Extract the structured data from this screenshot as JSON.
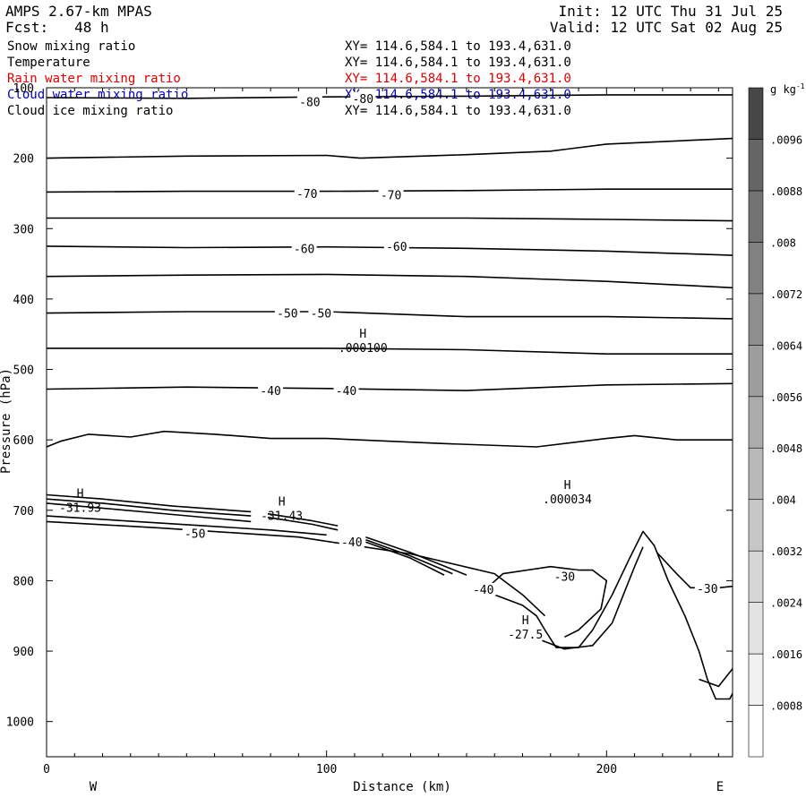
{
  "header": {
    "model": "AMPS 2.67-km MPAS",
    "forecast": "Fcst:   48 h",
    "init": "Init: 12 UTC Thu 31 Jul 25",
    "valid": "Valid: 12 UTC Sat 02 Aug 25"
  },
  "legend": [
    {
      "name": "Snow mixing ratio",
      "xy": "XY= 114.6,584.1 to 193.4,631.0",
      "color": "#000000"
    },
    {
      "name": "Temperature",
      "xy": "XY= 114.6,584.1 to 193.4,631.0",
      "color": "#000000"
    },
    {
      "name": "Rain water mixing ratio",
      "xy": "XY= 114.6,584.1 to 193.4,631.0",
      "color": "#e00000"
    },
    {
      "name": "Cloud water mixing ratio",
      "xy": "XY= 114.6,584.1 to 193.4,631.0",
      "color": "#0000c0"
    },
    {
      "name": "Cloud ice mixing ratio",
      "xy": "XY= 114.6,584.1 to 193.4,631.0",
      "color": "#000000"
    }
  ],
  "chart_data": {
    "type": "line",
    "xlabel": "Distance (km)",
    "ylabel": "Pressure (hPa)",
    "xlim": [
      0,
      245
    ],
    "ylim": [
      100,
      1050
    ],
    "x_ticks": [
      0,
      100,
      200
    ],
    "y_ticks": [
      100,
      200,
      300,
      400,
      500,
      600,
      700,
      800,
      900,
      1000
    ],
    "x_end_labels": {
      "left": "W",
      "right": "E"
    },
    "colorbar": {
      "unit": "g kg",
      "unit_exp": "-1",
      "tick_labels": [
        ".0008",
        ".0016",
        ".0024",
        ".0032",
        ".004",
        ".0048",
        ".0056",
        ".0064",
        ".0072",
        ".008",
        ".0088",
        ".0096"
      ],
      "shade_colors": [
        "#ffffff",
        "#f1f1f1",
        "#e3e3e3",
        "#d5d5d5",
        "#c7c7c7",
        "#b9b9b9",
        "#ababab",
        "#9d9d9d",
        "#8f8f8f",
        "#818181",
        "#737373",
        "#656565",
        "#474747"
      ]
    },
    "isotherms": [
      {
        "points": [
          [
            0,
            114
          ],
          [
            50,
            115
          ],
          [
            100,
            113
          ],
          [
            150,
            112
          ],
          [
            200,
            110
          ],
          [
            245,
            110
          ]
        ]
      },
      {
        "points": [
          [
            0,
            200
          ],
          [
            50,
            197
          ],
          [
            100,
            196
          ],
          [
            112,
            200
          ],
          [
            150,
            195
          ],
          [
            180,
            190
          ],
          [
            200,
            180
          ],
          [
            245,
            172
          ]
        ]
      },
      {
        "points": [
          [
            0,
            248
          ],
          [
            50,
            247
          ],
          [
            100,
            247
          ],
          [
            150,
            246
          ],
          [
            200,
            244
          ],
          [
            245,
            244
          ]
        ]
      },
      {
        "points": [
          [
            0,
            285
          ],
          [
            50,
            285
          ],
          [
            100,
            285
          ],
          [
            150,
            285
          ],
          [
            200,
            287
          ],
          [
            245,
            289
          ]
        ]
      },
      {
        "points": [
          [
            0,
            325
          ],
          [
            50,
            327
          ],
          [
            100,
            326
          ],
          [
            150,
            328
          ],
          [
            200,
            332
          ],
          [
            245,
            338
          ]
        ]
      },
      {
        "points": [
          [
            0,
            368
          ],
          [
            50,
            366
          ],
          [
            100,
            365
          ],
          [
            150,
            368
          ],
          [
            200,
            375
          ],
          [
            245,
            384
          ]
        ]
      },
      {
        "points": [
          [
            0,
            420
          ],
          [
            50,
            418
          ],
          [
            100,
            418
          ],
          [
            150,
            425
          ],
          [
            200,
            425
          ],
          [
            245,
            428
          ]
        ]
      },
      {
        "points": [
          [
            0,
            470
          ],
          [
            50,
            470
          ],
          [
            100,
            470
          ],
          [
            150,
            472
          ],
          [
            200,
            478
          ],
          [
            245,
            478
          ]
        ]
      },
      {
        "points": [
          [
            0,
            528
          ],
          [
            50,
            525
          ],
          [
            100,
            527
          ],
          [
            150,
            530
          ],
          [
            200,
            522
          ],
          [
            245,
            520
          ]
        ]
      },
      {
        "points": [
          [
            0,
            610
          ],
          [
            5,
            602
          ],
          [
            15,
            592
          ],
          [
            30,
            596
          ],
          [
            42,
            588
          ],
          [
            60,
            592
          ],
          [
            80,
            598
          ],
          [
            100,
            598
          ],
          [
            140,
            605
          ],
          [
            175,
            610
          ],
          [
            200,
            598
          ],
          [
            210,
            594
          ],
          [
            225,
            600
          ],
          [
            245,
            600
          ]
        ]
      },
      {
        "points": [
          [
            0,
            716
          ],
          [
            40,
            725
          ],
          [
            90,
            738
          ],
          [
            130,
            762
          ],
          [
            160,
            790
          ],
          [
            170,
            820
          ],
          [
            178,
            850
          ]
        ]
      },
      {
        "points": [
          [
            0,
            708
          ],
          [
            40,
            718
          ],
          [
            80,
            728
          ],
          [
            100,
            735
          ]
        ]
      },
      {
        "points": [
          [
            0,
            690
          ],
          [
            20,
            697
          ],
          [
            45,
            706
          ],
          [
            73,
            716
          ]
        ]
      },
      {
        "points": [
          [
            0,
            684
          ],
          [
            20,
            690
          ],
          [
            45,
            700
          ],
          [
            73,
            708
          ]
        ]
      },
      {
        "points": [
          [
            0,
            678
          ],
          [
            20,
            684
          ],
          [
            45,
            694
          ],
          [
            73,
            702
          ]
        ]
      },
      {
        "points": [
          [
            79,
            705
          ],
          [
            95,
            715
          ],
          [
            104,
            722
          ]
        ]
      },
      {
        "points": [
          [
            79,
            710
          ],
          [
            95,
            720
          ],
          [
            104,
            728
          ]
        ]
      },
      {
        "points": [
          [
            114,
            738
          ],
          [
            130,
            760
          ],
          [
            150,
            792
          ]
        ]
      },
      {
        "points": [
          [
            114,
            742
          ],
          [
            130,
            765
          ],
          [
            145,
            790
          ]
        ]
      },
      {
        "points": [
          [
            114,
            745
          ],
          [
            130,
            768
          ],
          [
            142,
            792
          ]
        ]
      },
      {
        "points": [
          [
            160,
            820
          ],
          [
            170,
            835
          ],
          [
            175,
            850
          ],
          [
            178,
            870
          ],
          [
            182,
            895
          ],
          [
            190,
            895
          ],
          [
            195,
            870
          ],
          [
            202,
            820
          ],
          [
            208,
            770
          ],
          [
            213,
            730
          ],
          [
            217,
            750
          ],
          [
            222,
            800
          ],
          [
            228,
            850
          ],
          [
            233,
            900
          ],
          [
            236,
            940
          ],
          [
            239,
            968
          ],
          [
            244,
            968
          ],
          [
            245,
            960
          ]
        ]
      },
      {
        "points": [
          [
            177,
            885
          ],
          [
            185,
            897
          ],
          [
            195,
            892
          ],
          [
            202,
            860
          ],
          [
            206,
            820
          ],
          [
            210,
            780
          ],
          [
            213,
            752
          ]
        ]
      },
      {
        "points": [
          [
            156,
            815
          ],
          [
            163,
            790
          ],
          [
            180,
            780
          ],
          [
            190,
            785
          ],
          [
            195,
            785
          ],
          [
            200,
            800
          ],
          [
            198,
            840
          ],
          [
            190,
            870
          ],
          [
            185,
            880
          ]
        ]
      },
      {
        "points": [
          [
            218,
            760
          ],
          [
            225,
            790
          ],
          [
            230,
            810
          ],
          [
            240,
            810
          ],
          [
            245,
            808
          ]
        ]
      },
      {
        "points": [
          [
            233,
            940
          ],
          [
            240,
            950
          ],
          [
            245,
            925
          ]
        ]
      }
    ],
    "contour_labels": [
      {
        "x": 94,
        "y": 120,
        "text": "-80"
      },
      {
        "x": 113,
        "y": 115,
        "text": "-80"
      },
      {
        "x": 93,
        "y": 250,
        "text": "-70"
      },
      {
        "x": 123,
        "y": 252,
        "text": "-70"
      },
      {
        "x": 92,
        "y": 328,
        "text": "-60"
      },
      {
        "x": 125,
        "y": 325,
        "text": "-60"
      },
      {
        "x": 86,
        "y": 420,
        "text": "-50"
      },
      {
        "x": 98,
        "y": 420,
        "text": "-50"
      },
      {
        "x": 80,
        "y": 530,
        "text": "-40"
      },
      {
        "x": 107,
        "y": 530,
        "text": "-40"
      },
      {
        "x": 53,
        "y": 733,
        "text": "-50"
      },
      {
        "x": 109,
        "y": 745,
        "text": "-40"
      },
      {
        "x": 156,
        "y": 812,
        "text": "-40"
      },
      {
        "x": 185,
        "y": 794,
        "text": "-30"
      },
      {
        "x": 236,
        "y": 811,
        "text": "-30"
      }
    ],
    "extrema": [
      {
        "x": 12,
        "y": 682,
        "mark": "H",
        "value": "-31.93"
      },
      {
        "x": 84,
        "y": 693,
        "mark": "H",
        "value": "-31.43"
      },
      {
        "x": 113,
        "y": 455,
        "mark": "H",
        "value": ".000100"
      },
      {
        "x": 186,
        "y": 670,
        "mark": "H",
        "value": ".000034"
      },
      {
        "x": 171,
        "y": 862,
        "mark": "H",
        "value": "-27.5"
      }
    ]
  }
}
